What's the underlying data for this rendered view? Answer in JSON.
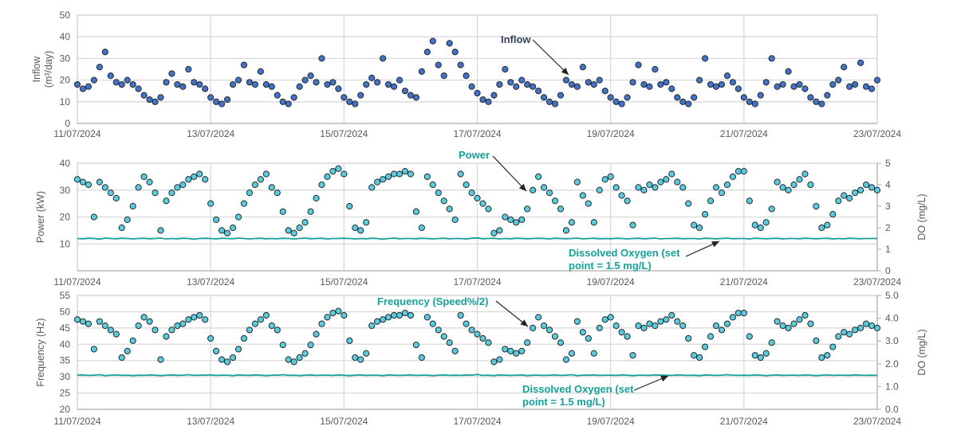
{
  "x": [
    "11/07/2024 00:00",
    "11/07/2024 02:00",
    "11/07/2024 04:00",
    "11/07/2024 06:00",
    "11/07/2024 08:00",
    "11/07/2024 10:00",
    "11/07/2024 12:00",
    "11/07/2024 14:00",
    "11/07/2024 16:00",
    "11/07/2024 18:00",
    "11/07/2024 20:00",
    "11/07/2024 22:00",
    "12/07/2024 00:00",
    "12/07/2024 02:00",
    "12/07/2024 04:00",
    "12/07/2024 06:00",
    "12/07/2024 08:00",
    "12/07/2024 10:00",
    "12/07/2024 12:00",
    "12/07/2024 14:00",
    "12/07/2024 16:00",
    "12/07/2024 18:00",
    "12/07/2024 20:00",
    "12/07/2024 22:00",
    "13/07/2024 00:00",
    "13/07/2024 02:00",
    "13/07/2024 04:00",
    "13/07/2024 06:00",
    "13/07/2024 08:00",
    "13/07/2024 10:00",
    "13/07/2024 12:00",
    "13/07/2024 14:00",
    "13/07/2024 16:00",
    "13/07/2024 18:00",
    "13/07/2024 20:00",
    "13/07/2024 22:00",
    "14/07/2024 00:00",
    "14/07/2024 02:00",
    "14/07/2024 04:00",
    "14/07/2024 06:00",
    "14/07/2024 08:00",
    "14/07/2024 10:00",
    "14/07/2024 12:00",
    "14/07/2024 14:00",
    "14/07/2024 16:00",
    "14/07/2024 18:00",
    "14/07/2024 20:00",
    "14/07/2024 22:00",
    "15/07/2024 00:00",
    "15/07/2024 02:00",
    "15/07/2024 04:00",
    "15/07/2024 06:00",
    "15/07/2024 08:00",
    "15/07/2024 10:00",
    "15/07/2024 12:00",
    "15/07/2024 14:00",
    "15/07/2024 16:00",
    "15/07/2024 18:00",
    "15/07/2024 20:00",
    "15/07/2024 22:00",
    "16/07/2024 00:00",
    "16/07/2024 02:00",
    "16/07/2024 04:00",
    "16/07/2024 06:00",
    "16/07/2024 08:00",
    "16/07/2024 10:00",
    "16/07/2024 12:00",
    "16/07/2024 14:00",
    "16/07/2024 16:00",
    "16/07/2024 18:00",
    "16/07/2024 20:00",
    "16/07/2024 22:00",
    "17/07/2024 00:00",
    "17/07/2024 02:00",
    "17/07/2024 04:00",
    "17/07/2024 06:00",
    "17/07/2024 08:00",
    "17/07/2024 10:00",
    "17/07/2024 12:00",
    "17/07/2024 14:00",
    "17/07/2024 16:00",
    "17/07/2024 18:00",
    "17/07/2024 20:00",
    "17/07/2024 22:00",
    "18/07/2024 00:00",
    "18/07/2024 02:00",
    "18/07/2024 04:00",
    "18/07/2024 06:00",
    "18/07/2024 08:00",
    "18/07/2024 10:00",
    "18/07/2024 12:00",
    "18/07/2024 14:00",
    "18/07/2024 16:00",
    "18/07/2024 18:00",
    "18/07/2024 20:00",
    "18/07/2024 22:00",
    "19/07/2024 00:00",
    "19/07/2024 02:00",
    "19/07/2024 04:00",
    "19/07/2024 06:00",
    "19/07/2024 08:00",
    "19/07/2024 10:00",
    "19/07/2024 12:00",
    "19/07/2024 14:00",
    "19/07/2024 16:00",
    "19/07/2024 18:00",
    "19/07/2024 20:00",
    "19/07/2024 22:00",
    "20/07/2024 00:00",
    "20/07/2024 02:00",
    "20/07/2024 04:00",
    "20/07/2024 06:00",
    "20/07/2024 08:00",
    "20/07/2024 10:00",
    "20/07/2024 12:00",
    "20/07/2024 14:00",
    "20/07/2024 16:00",
    "20/07/2024 18:00",
    "20/07/2024 20:00",
    "20/07/2024 22:00",
    "21/07/2024 00:00",
    "21/07/2024 02:00",
    "21/07/2024 04:00",
    "21/07/2024 06:00",
    "21/07/2024 08:00",
    "21/07/2024 10:00",
    "21/07/2024 12:00",
    "21/07/2024 14:00",
    "21/07/2024 16:00",
    "21/07/2024 18:00",
    "21/07/2024 20:00",
    "21/07/2024 22:00",
    "22/07/2024 00:00",
    "22/07/2024 02:00",
    "22/07/2024 04:00",
    "22/07/2024 06:00",
    "22/07/2024 08:00",
    "22/07/2024 10:00",
    "22/07/2024 12:00",
    "22/07/2024 14:00",
    "22/07/2024 16:00",
    "22/07/2024 18:00",
    "22/07/2024 20:00",
    "22/07/2024 22:00",
    "23/07/2024 00:00"
  ],
  "chart_data": [
    {
      "type": "scatter",
      "ylabel": [
        "Inflow",
        "(m³/day)"
      ],
      "xlim": [
        "11/07/2024",
        "23/07/2024"
      ],
      "xticks": [
        "11/07/2024",
        "13/07/2024",
        "15/07/2024",
        "17/07/2024",
        "19/07/2024",
        "21/07/2024",
        "23/07/2024"
      ],
      "ylim": [
        0,
        50
      ],
      "yticks": [
        "0",
        "10",
        "20",
        "30",
        "40",
        "50"
      ],
      "grid": true,
      "annotations": [
        {
          "text": "Inflow",
          "target_series": "Inflow"
        }
      ],
      "series": [
        {
          "name": "Inflow",
          "axis": "left",
          "marker": "circle",
          "color": "#4472c4",
          "y": [
            18,
            16,
            17,
            20,
            26,
            33,
            22,
            19,
            18,
            20,
            18,
            16,
            13,
            11,
            10,
            12,
            19,
            23,
            18,
            17,
            25,
            19,
            18,
            16,
            12,
            10,
            9,
            11,
            18,
            20,
            27,
            19,
            18,
            24,
            18,
            17,
            13,
            10,
            9,
            12,
            17,
            20,
            22,
            19,
            30,
            18,
            19,
            16,
            12,
            10,
            9,
            13,
            18,
            21,
            19,
            30,
            18,
            17,
            20,
            15,
            13,
            12,
            24,
            33,
            38,
            27,
            22,
            37,
            33,
            27,
            22,
            17,
            14,
            11,
            10,
            13,
            18,
            25,
            19,
            17,
            20,
            18,
            17,
            15,
            12,
            10,
            9,
            13,
            20,
            18,
            17,
            26,
            19,
            18,
            20,
            15,
            12,
            10,
            9,
            12,
            19,
            27,
            18,
            17,
            25,
            18,
            19,
            16,
            12,
            10,
            9,
            12,
            20,
            30,
            18,
            17,
            18,
            22,
            19,
            16,
            12,
            10,
            9,
            13,
            19,
            30,
            17,
            18,
            24,
            17,
            18,
            16,
            12,
            10,
            9,
            13,
            18,
            20,
            26,
            17,
            18,
            28,
            17,
            16,
            20
          ]
        }
      ]
    },
    {
      "type": "scatter",
      "ylabel": "Power (kW)",
      "y2label": "DO (mg/L)",
      "xlim": [
        "11/07/2024",
        "23/07/2024"
      ],
      "xticks": [
        "11/07/2024",
        "13/07/2024",
        "15/07/2024",
        "17/07/2024",
        "19/07/2024",
        "21/07/2024",
        "23/07/2024"
      ],
      "ylim": [
        0,
        40
      ],
      "yticks": [
        "10",
        "20",
        "30",
        "40"
      ],
      "y2lim": [
        0,
        5
      ],
      "y2ticks": [
        "0",
        "1",
        "2",
        "3",
        "4",
        "5"
      ],
      "grid": true,
      "annotations": [
        {
          "text": "Power",
          "target_series": "Power"
        },
        {
          "text": [
            "Dissolved Oxygen (set",
            "point = 1.5 mg/L)"
          ],
          "target_series": "Dissolved Oxygen"
        }
      ],
      "series": [
        {
          "name": "Power",
          "axis": "left",
          "marker": "circle",
          "color": "#5ccbdb",
          "y": [
            34,
            33,
            32,
            20,
            33,
            31,
            29,
            27,
            16,
            19,
            24,
            31,
            35,
            33,
            29,
            15,
            26,
            29,
            31,
            32,
            34,
            35,
            36,
            34,
            25,
            19,
            15,
            14,
            16,
            20,
            25,
            29,
            32,
            34,
            36,
            31,
            29,
            22,
            15,
            14,
            16,
            18,
            22,
            27,
            32,
            35,
            37,
            38,
            36,
            24,
            16,
            15,
            18,
            31,
            33,
            34,
            35,
            36,
            36,
            37,
            36,
            22,
            16,
            35,
            32,
            29,
            26,
            23,
            19,
            36,
            32,
            29,
            27,
            25,
            23,
            14,
            15,
            20,
            19,
            18,
            19,
            23,
            30,
            35,
            31,
            29,
            26,
            23,
            15,
            18,
            33,
            28,
            25,
            18,
            30,
            34,
            35,
            31,
            28,
            26,
            17,
            31,
            30,
            32,
            31,
            33,
            34,
            36,
            33,
            31,
            25,
            17,
            16,
            21,
            26,
            31,
            29,
            32,
            35,
            37,
            37,
            26,
            17,
            16,
            18,
            23,
            33,
            31,
            30,
            32,
            34,
            36,
            32,
            24,
            16,
            17,
            21,
            26,
            28,
            27,
            29,
            30,
            32,
            31,
            30
          ]
        },
        {
          "name": "Dissolved Oxygen",
          "axis": "right",
          "marker": "line",
          "color": "#17a097",
          "y": [
            1.5,
            1.49,
            1.51,
            1.5,
            1.47,
            1.52,
            1.5,
            1.49,
            1.51,
            1.5,
            1.48,
            1.5,
            1.51,
            1.49,
            1.5,
            1.52,
            1.48,
            1.5,
            1.49,
            1.51,
            1.5,
            1.47,
            1.5,
            1.51,
            1.5,
            1.48,
            1.51,
            1.5,
            1.49,
            1.52,
            1.5,
            1.48,
            1.5,
            1.51,
            1.49,
            1.5,
            1.49,
            1.51,
            1.5,
            1.48,
            1.5,
            1.52,
            1.49,
            1.5,
            1.51,
            1.48,
            1.5,
            1.5,
            1.51,
            1.5,
            1.48,
            1.5,
            1.49,
            1.51,
            1.5,
            1.47,
            1.5,
            1.52,
            1.49,
            1.5,
            1.5,
            1.49,
            1.51,
            1.5,
            1.48,
            1.5,
            1.51,
            1.49,
            1.5,
            1.5,
            1.48,
            1.51,
            1.53,
            1.49,
            1.5,
            1.51,
            1.48,
            1.5,
            1.49,
            1.51,
            1.5,
            1.49,
            1.5,
            1.51,
            1.5,
            1.48,
            1.51,
            1.5,
            1.49,
            1.5,
            1.52,
            1.48,
            1.5,
            1.51,
            1.49,
            1.5,
            1.49,
            1.51,
            1.5,
            1.48,
            1.5,
            1.51,
            1.49,
            1.5,
            1.52,
            1.48,
            1.5,
            1.5,
            1.51,
            1.49,
            1.5,
            1.5,
            1.48,
            1.51,
            1.5,
            1.49,
            1.5,
            1.52,
            1.49,
            1.5,
            1.5,
            1.48,
            1.51,
            1.5,
            1.49,
            1.5,
            1.51,
            1.48,
            1.5,
            1.5,
            1.49,
            1.51,
            1.5,
            1.49,
            1.5,
            1.51,
            1.48,
            1.5,
            1.49,
            1.51,
            1.5,
            1.49,
            1.5,
            1.5,
            1.5
          ]
        }
      ]
    },
    {
      "type": "scatter",
      "ylabel": "Frequency (Hz)",
      "y2label": "DO (mg/L)",
      "xlim": [
        "11/07/2024",
        "23/07/2024"
      ],
      "xticks": [
        "11/07/2024",
        "13/07/2024",
        "15/07/2024",
        "17/07/2024",
        "19/07/2024",
        "21/07/2024",
        "23/07/2024"
      ],
      "ylim": [
        20,
        55
      ],
      "yticks": [
        "20",
        "25",
        "30",
        "35",
        "40",
        "45",
        "50",
        "55"
      ],
      "y2lim": [
        0,
        5
      ],
      "y2ticks": [
        "0.0",
        "1.0",
        "2.0",
        "3.0",
        "4.0",
        "5.0"
      ],
      "grid": true,
      "annotations": [
        {
          "text": "Frequency (Speed%/2)",
          "target_series": "Frequency"
        },
        {
          "text": [
            "Dissolved Oxygen (set",
            "point = 1.5 mg/L)"
          ],
          "target_series": "Dissolved Oxygen"
        }
      ],
      "series": [
        {
          "name": "Frequency",
          "axis": "left",
          "marker": "circle",
          "color": "#5ccbdb",
          "y": [
            47.6,
            47.0,
            46.3,
            38.5,
            47.0,
            45.7,
            44.4,
            43.1,
            35.9,
            37.9,
            41.1,
            45.7,
            48.3,
            47.0,
            44.4,
            35.3,
            42.4,
            44.4,
            45.7,
            46.3,
            47.6,
            48.3,
            48.9,
            47.6,
            41.8,
            37.9,
            35.3,
            34.6,
            35.9,
            38.5,
            41.8,
            44.4,
            46.3,
            47.6,
            48.9,
            45.7,
            44.4,
            39.8,
            35.3,
            34.6,
            35.9,
            37.2,
            39.8,
            43.1,
            46.3,
            48.3,
            49.6,
            50.2,
            48.9,
            41.1,
            35.9,
            35.3,
            37.2,
            45.7,
            47.0,
            47.6,
            48.3,
            48.9,
            48.9,
            49.6,
            48.9,
            39.8,
            35.9,
            48.3,
            46.3,
            44.4,
            42.4,
            40.5,
            37.9,
            48.9,
            46.3,
            44.4,
            43.1,
            41.8,
            40.5,
            34.6,
            35.3,
            38.5,
            37.9,
            37.2,
            37.9,
            40.5,
            45.0,
            48.3,
            45.7,
            44.4,
            42.4,
            40.5,
            35.3,
            37.2,
            47.0,
            43.7,
            41.8,
            37.2,
            45.0,
            47.6,
            48.3,
            45.7,
            43.7,
            42.4,
            36.6,
            45.7,
            45.0,
            46.3,
            45.7,
            47.0,
            47.6,
            48.9,
            47.0,
            45.7,
            41.8,
            36.6,
            35.9,
            39.2,
            42.4,
            45.7,
            44.4,
            46.3,
            48.3,
            49.6,
            49.6,
            42.4,
            36.6,
            35.9,
            37.2,
            40.5,
            47.0,
            45.7,
            45.0,
            46.3,
            47.6,
            48.9,
            46.3,
            41.1,
            35.9,
            36.6,
            39.2,
            42.4,
            43.7,
            43.1,
            44.4,
            45.0,
            46.3,
            45.7,
            45.0
          ]
        },
        {
          "name": "Dissolved Oxygen",
          "axis": "right",
          "marker": "line",
          "color": "#17a097",
          "y": [
            1.5,
            1.51,
            1.49,
            1.5,
            1.52,
            1.48,
            1.5,
            1.51,
            1.49,
            1.5,
            1.48,
            1.5,
            1.49,
            1.51,
            1.5,
            1.48,
            1.5,
            1.51,
            1.49,
            1.5,
            1.52,
            1.49,
            1.5,
            1.5,
            1.51,
            1.49,
            1.5,
            1.5,
            1.48,
            1.51,
            1.5,
            1.49,
            1.51,
            1.5,
            1.48,
            1.5,
            1.5,
            1.52,
            1.49,
            1.5,
            1.48,
            1.5,
            1.51,
            1.49,
            1.5,
            1.5,
            1.49,
            1.51,
            1.5,
            1.48,
            1.5,
            1.51,
            1.49,
            1.5,
            1.5,
            1.48,
            1.51,
            1.5,
            1.49,
            1.5,
            1.51,
            1.49,
            1.5,
            1.5,
            1.48,
            1.5,
            1.51,
            1.49,
            1.5,
            1.49,
            1.51,
            1.5,
            1.53,
            1.49,
            1.5,
            1.48,
            1.51,
            1.5,
            1.49,
            1.5,
            1.51,
            1.48,
            1.5,
            1.5,
            1.49,
            1.5,
            1.51,
            1.49,
            1.5,
            1.52,
            1.48,
            1.5,
            1.5,
            1.51,
            1.49,
            1.5,
            1.5,
            1.49,
            1.51,
            1.5,
            1.48,
            1.5,
            1.5,
            1.49,
            1.51,
            1.5,
            1.5,
            1.49,
            1.51,
            1.5,
            1.49,
            1.5,
            1.48,
            1.51,
            1.5,
            1.49,
            1.5,
            1.52,
            1.5,
            1.49,
            1.5,
            1.49,
            1.51,
            1.5,
            1.48,
            1.5,
            1.51,
            1.49,
            1.5,
            1.5,
            1.49,
            1.51,
            1.5,
            1.48,
            1.5,
            1.51,
            1.49,
            1.5,
            1.5,
            1.49,
            1.51,
            1.5,
            1.49,
            1.5,
            1.49
          ]
        }
      ]
    }
  ]
}
